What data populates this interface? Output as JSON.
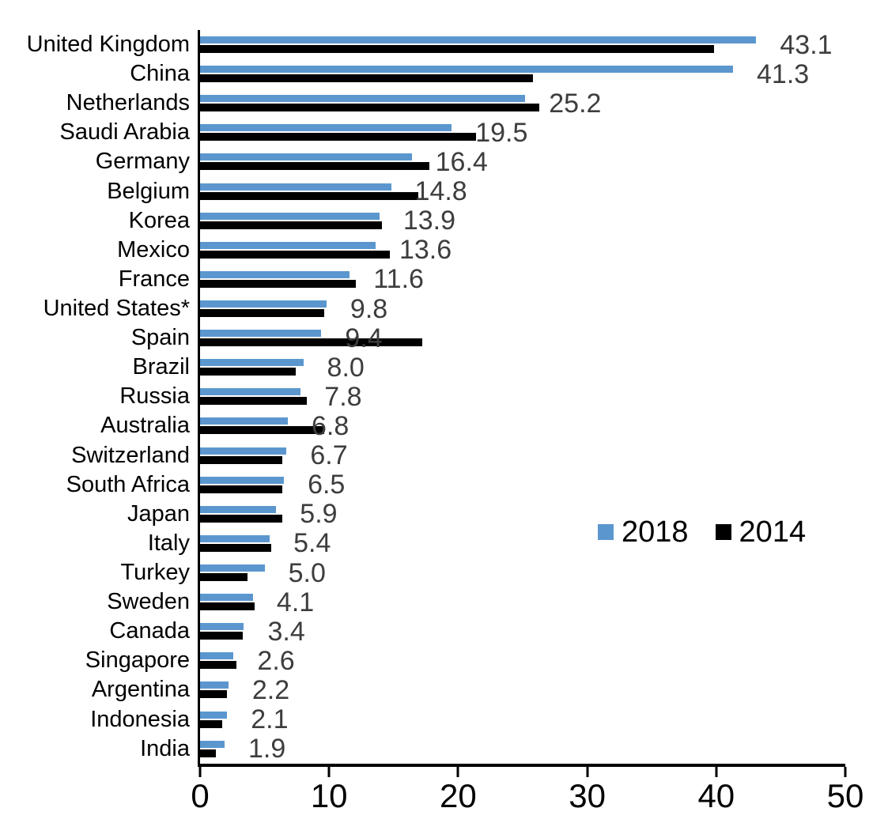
{
  "chart_data": {
    "type": "bar",
    "orientation": "horizontal",
    "title": "",
    "xlabel": "",
    "ylabel": "",
    "xlim": [
      0,
      50
    ],
    "x_ticks": [
      "0",
      "10",
      "20",
      "30",
      "40",
      "50"
    ],
    "grid": false,
    "legend_position": "middle-right",
    "categories": [
      "United Kingdom",
      "China",
      "Netherlands",
      "Saudi Arabia",
      "Germany",
      "Belgium",
      "Korea",
      "Mexico",
      "France",
      "United States*",
      "Spain",
      "Brazil",
      "Russia",
      "Australia",
      "Switzerland",
      "South Africa",
      "Japan",
      "Italy",
      "Turkey",
      "Sweden",
      "Canada",
      "Singapore",
      "Argentina",
      "Indonesia",
      "India"
    ],
    "series": [
      {
        "name": "2018",
        "color": "#5b97ce",
        "values": [
          43.1,
          41.3,
          25.2,
          19.5,
          16.4,
          14.8,
          13.9,
          13.6,
          11.6,
          9.8,
          9.4,
          8.0,
          7.8,
          6.8,
          6.7,
          6.5,
          5.9,
          5.4,
          5.0,
          4.1,
          3.4,
          2.6,
          2.2,
          2.1,
          1.9
        ],
        "data_labels": [
          "43.1",
          "41.3",
          "25.2",
          "19.5",
          "16.4",
          "14.8",
          "13.9",
          "13.6",
          "11.6",
          "9.8",
          "9.4",
          "8.0",
          "7.8",
          "6.8",
          "6.7",
          "6.5",
          "5.9",
          "5.4",
          "5.0",
          "4.1",
          "3.4",
          "2.6",
          "2.2",
          "2.1",
          "1.9"
        ]
      },
      {
        "name": "2014",
        "color": "#000000",
        "values": [
          39.8,
          25.8,
          26.3,
          21.4,
          17.8,
          16.9,
          14.1,
          14.7,
          12.1,
          9.6,
          17.2,
          7.4,
          8.3,
          9.6,
          6.4,
          6.4,
          6.4,
          5.5,
          3.7,
          4.2,
          3.3,
          2.8,
          2.1,
          1.7,
          1.2
        ]
      }
    ],
    "legend": {
      "entries": [
        {
          "label": "2018",
          "color": "#5b97ce"
        },
        {
          "label": "2014",
          "color": "#000000"
        }
      ]
    }
  },
  "colors": {
    "background": "#ffffff",
    "axis": "#000000",
    "value_label": "#3d3d3d",
    "series_2018": "#5b97ce",
    "series_2014": "#000000"
  }
}
